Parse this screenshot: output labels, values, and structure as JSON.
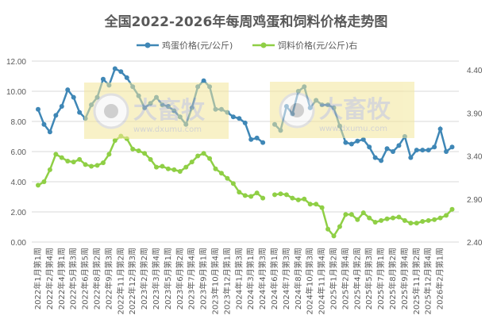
{
  "chart_data": {
    "type": "line",
    "title": "全国2022-2026年每周鸡蛋和饲料价格走势图",
    "legend_position": "top",
    "grid": true,
    "watermark": {
      "name": "大畜牧",
      "url": "www.dxumu.com"
    },
    "x_tick_labels": [
      "2022年1月第1周",
      "2022年2月第4周",
      "2022年4月第1周",
      "2022年5月第3周",
      "2022年6月第5周",
      "2022年8月第2周",
      "2022年9月第3周",
      "2022年11月第2周",
      "2022年12月第3周",
      "2023年2月第2周",
      "2023年3月第4周",
      "2023年5月第1周",
      "2023年6月第2周",
      "2023年7月第4周",
      "2023年9月第1周",
      "2023年10月第4周",
      "2023年12月第1周",
      "2024年1月第3周",
      "2024年3月第1周",
      "2024年4月第3周",
      "2024年6月第1周",
      "2024年7月第3周",
      "2024年8月第4周",
      "2024年10月第3周",
      "2024年11月第4周",
      "2025年1月第2周",
      "2025年2月第4周",
      "2025年4月第2周",
      "2025年5月第3周",
      "2025年7月第1周",
      "2025年8月第2周",
      "2025年9月第4周",
      "2025年11月第2周",
      "2025年12月第4周",
      "2026年2月第1周"
    ],
    "left_axis": {
      "ylim": [
        0,
        12
      ],
      "ticks": [
        "0.00",
        "2.00",
        "4.00",
        "6.00",
        "8.00",
        "10.00",
        "12.00"
      ]
    },
    "right_axis": {
      "ylim": [
        2.4,
        4.4
      ],
      "ticks": [
        "2.40",
        "2.90",
        "3.40",
        "3.90",
        "4.40"
      ]
    },
    "series": [
      {
        "name": "鸡蛋价格(元/公斤)",
        "axis": "left",
        "color": "#3f87b6",
        "values": [
          8.8,
          7.8,
          7.3,
          8.4,
          9.0,
          10.1,
          9.6,
          8.6,
          8.2,
          9.1,
          9.6,
          10.8,
          10.4,
          11.5,
          11.3,
          10.9,
          10.3,
          9.7,
          8.9,
          9.2,
          9.6,
          9.1,
          9.0,
          8.7,
          8.3,
          7.8,
          8.9,
          10.3,
          10.7,
          10.3,
          8.8,
          8.8,
          8.6,
          8.3,
          8.2,
          7.9,
          6.8,
          6.9,
          6.6,
          null,
          7.8,
          7.4,
          9.0,
          8.5,
          10.0,
          10.3,
          8.9,
          9.4,
          9.1,
          9.1,
          8.9,
          7.7,
          6.6,
          6.5,
          6.7,
          6.8,
          6.3,
          5.6,
          5.4,
          6.2,
          6.0,
          6.4,
          7.0,
          5.6,
          6.1,
          6.1,
          6.1,
          6.3,
          7.5,
          6.0,
          6.3
        ]
      },
      {
        "name": "饲料价格(元/公斤)右",
        "axis": "right",
        "color": "#8fcf45",
        "values": [
          3.06,
          3.1,
          3.24,
          3.42,
          3.38,
          3.34,
          3.33,
          3.36,
          3.3,
          3.28,
          3.29,
          3.32,
          3.42,
          3.58,
          3.63,
          3.6,
          3.48,
          3.46,
          3.43,
          3.36,
          3.27,
          3.28,
          3.25,
          3.24,
          3.22,
          3.27,
          3.33,
          3.4,
          3.43,
          3.37,
          3.25,
          3.2,
          3.14,
          3.08,
          2.98,
          2.94,
          2.93,
          2.97,
          2.91,
          null,
          2.95,
          2.96,
          2.95,
          2.91,
          2.89,
          2.9,
          2.84,
          2.84,
          2.8,
          2.55,
          2.47,
          2.58,
          2.72,
          2.72,
          2.66,
          2.74,
          2.68,
          2.63,
          2.65,
          2.67,
          2.68,
          2.69,
          2.65,
          2.62,
          2.62,
          2.64,
          2.65,
          2.66,
          2.68,
          2.71,
          2.78
        ]
      }
    ]
  }
}
